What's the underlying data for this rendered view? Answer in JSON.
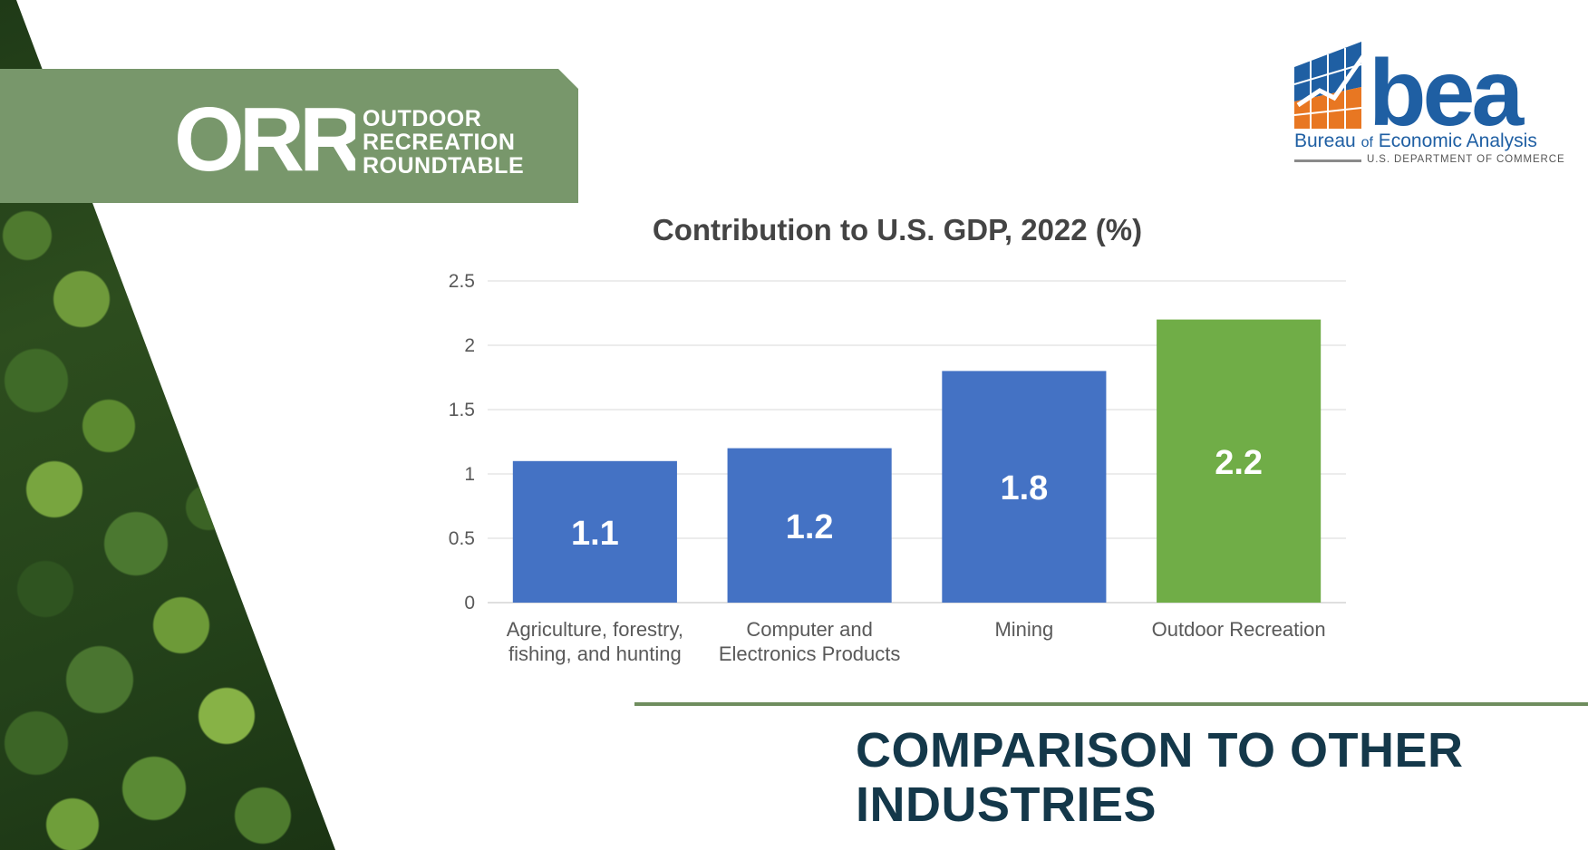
{
  "header": {
    "orr_logo_text": "ORR",
    "orr_name_lines": [
      "OUTDOOR",
      "RECREATION",
      "ROUNDTABLE"
    ]
  },
  "bea": {
    "logo_text": "bea",
    "full_name_prefix": "Bureau",
    "full_name_of": "of",
    "full_name_suffix": "Economic Analysis",
    "department": "U.S. DEPARTMENT OF COMMERCE"
  },
  "slide_title": "COMPARISON TO OTHER INDUSTRIES",
  "colors": {
    "bar_default": "#4472c4",
    "bar_highlight": "#70ad47",
    "title_text": "#14384a",
    "header_band": "#78976b"
  },
  "chart_data": {
    "type": "bar",
    "title": "Contribution to U.S. GDP, 2022 (%)",
    "xlabel": "",
    "ylabel": "",
    "categories": [
      [
        "Agriculture, forestry,",
        "fishing, and hunting"
      ],
      [
        "Computer and",
        "Electronics Products"
      ],
      [
        "Mining"
      ],
      [
        "Outdoor Recreation"
      ]
    ],
    "values": [
      1.1,
      1.2,
      1.8,
      2.2
    ],
    "bar_colors": [
      "#4472c4",
      "#4472c4",
      "#4472c4",
      "#70ad47"
    ],
    "data_labels": [
      "1.1",
      "1.2",
      "1.8",
      "2.2"
    ],
    "ylim": [
      0,
      2.5
    ],
    "yticks": [
      0,
      0.5,
      1,
      1.5,
      2,
      2.5
    ],
    "ytick_labels": [
      "0",
      "0.5",
      "1",
      "1.5",
      "2",
      "2.5"
    ],
    "grid": true,
    "legend": "none"
  }
}
